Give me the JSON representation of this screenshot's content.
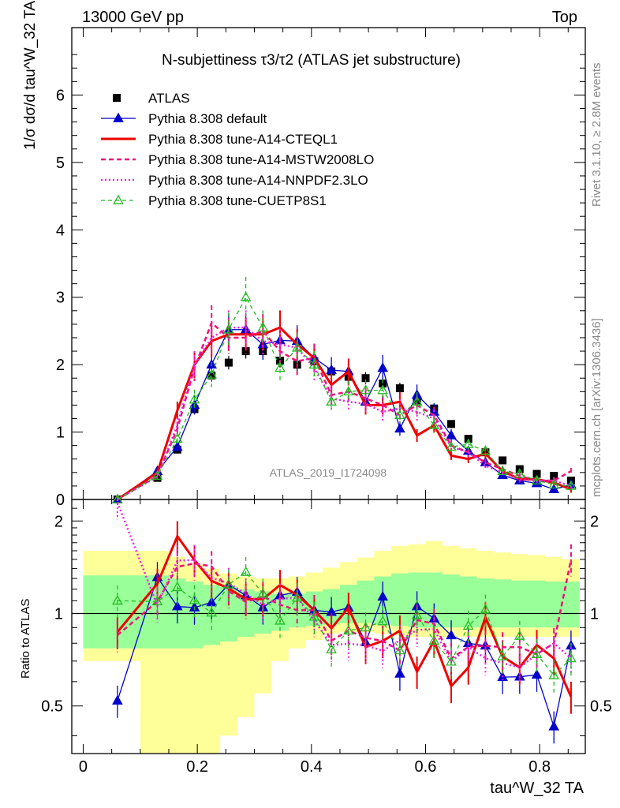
{
  "header": {
    "left": "13000 GeV pp",
    "right": "Top"
  },
  "side_labels": {
    "rivet": "Rivet 3.1.10, ≥ 2.8M events",
    "mcplots": "mcplots.cern.ch [arXiv:1306.3436]"
  },
  "chart_data": {
    "type": "scatter",
    "title": "N-subjettiness τ3/τ2 (ATLAS jet substructure)",
    "watermark": "ATLAS_2019_I1724098",
    "xlabel": "tau^W_32 TA",
    "ylabel_main": "1/σ dσ/d tau^W_32 TA",
    "ylabel_ratio": "Ratio to ATLAS",
    "xlim": [
      -0.02,
      0.88
    ],
    "ylim_main": [
      0,
      7
    ],
    "ylim_ratio": [
      0.35,
      2.35
    ],
    "main_yticks": [
      "0",
      "1",
      "2",
      "3",
      "4",
      "5",
      "6"
    ],
    "ratio_yticks": [
      "0.5",
      "1",
      "2"
    ],
    "xticks": [
      "0",
      "0.2",
      "0.4",
      "0.6",
      "0.8"
    ],
    "x": [
      0.06,
      0.13,
      0.165,
      0.195,
      0.225,
      0.255,
      0.285,
      0.315,
      0.345,
      0.375,
      0.405,
      0.435,
      0.465,
      0.495,
      0.525,
      0.555,
      0.585,
      0.615,
      0.645,
      0.675,
      0.705,
      0.735,
      0.765,
      0.795,
      0.825,
      0.855
    ],
    "series": [
      {
        "name": "ATLAS",
        "color": "#000000",
        "style": "data",
        "values": [
          0.0,
          0.32,
          0.74,
          1.34,
          1.84,
          2.03,
          2.2,
          2.2,
          2.06,
          2.0,
          2.05,
          1.9,
          1.82,
          1.8,
          1.72,
          1.65,
          1.47,
          1.35,
          1.12,
          0.9,
          0.7,
          0.58,
          0.45,
          0.38,
          0.35,
          0.28
        ]
      },
      {
        "name": "Pythia 8.308 default",
        "color": "#0000cc",
        "style": "solid-triangle",
        "values": [
          0.0,
          0.42,
          0.78,
          1.4,
          2.0,
          2.52,
          2.52,
          2.3,
          2.36,
          2.35,
          2.1,
          1.92,
          1.9,
          1.45,
          1.95,
          1.05,
          1.55,
          1.3,
          0.95,
          0.72,
          0.55,
          0.36,
          0.28,
          0.24,
          0.15,
          0.22
        ]
      },
      {
        "name": "Pythia 8.308 tune-A14-CTEQL1",
        "color": "#ee0000",
        "style": "thick-solid",
        "values": [
          0.0,
          0.4,
          1.32,
          2.0,
          2.35,
          2.45,
          2.45,
          2.45,
          2.55,
          2.3,
          2.1,
          1.7,
          1.9,
          1.4,
          1.4,
          1.45,
          0.95,
          1.1,
          0.65,
          0.6,
          0.68,
          0.42,
          0.3,
          0.3,
          0.25,
          0.15
        ]
      },
      {
        "name": "Pythia 8.308 tune-A14-MSTW2008LO",
        "color": "#ee1177",
        "style": "dashed",
        "values": [
          0.0,
          0.35,
          1.05,
          1.95,
          2.62,
          2.4,
          2.4,
          2.5,
          2.2,
          2.05,
          2.1,
          1.55,
          1.6,
          1.5,
          1.4,
          1.25,
          1.4,
          1.25,
          0.8,
          0.7,
          0.55,
          0.45,
          0.35,
          0.28,
          0.28,
          0.42
        ]
      },
      {
        "name": "Pythia 8.308 tune-A14-NNPDF2.3LO",
        "color": "#ee22dd",
        "style": "dotted",
        "values": [
          0.0,
          0.34,
          1.1,
          2.0,
          2.4,
          2.55,
          2.55,
          2.35,
          2.3,
          2.25,
          1.95,
          1.5,
          1.45,
          1.42,
          1.3,
          1.35,
          1.3,
          1.2,
          0.78,
          0.7,
          0.5,
          0.4,
          0.3,
          0.28,
          0.28,
          0.2
        ]
      },
      {
        "name": "Pythia 8.308 tune-CUETP8S1",
        "color": "#22bb22",
        "style": "dashed-open-triangle",
        "values": [
          0.0,
          0.35,
          0.9,
          1.48,
          1.85,
          2.52,
          3.0,
          2.55,
          1.95,
          2.25,
          2.0,
          1.45,
          1.6,
          1.62,
          1.62,
          1.25,
          1.45,
          1.1,
          0.78,
          0.82,
          0.72,
          0.42,
          0.38,
          0.28,
          0.22,
          0.2
        ]
      }
    ],
    "ratio_bands": {
      "x_edges": [
        0.0,
        0.1,
        0.15,
        0.18,
        0.21,
        0.24,
        0.27,
        0.3,
        0.33,
        0.36,
        0.39,
        0.42,
        0.45,
        0.48,
        0.51,
        0.54,
        0.57,
        0.6,
        0.63,
        0.66,
        0.69,
        0.72,
        0.75,
        0.78,
        0.81,
        0.84,
        0.87
      ],
      "yellow_lo": [
        0.7,
        0.35,
        0.35,
        0.35,
        0.35,
        0.4,
        0.46,
        0.55,
        0.7,
        0.77,
        0.82,
        0.86,
        0.87,
        0.87,
        0.86,
        0.85,
        0.84,
        0.84,
        0.84,
        0.84,
        0.84,
        0.84,
        0.84,
        0.84,
        0.84,
        0.84
      ],
      "yellow_hi": [
        1.6,
        1.6,
        1.53,
        1.45,
        1.4,
        1.35,
        1.32,
        1.3,
        1.3,
        1.32,
        1.36,
        1.41,
        1.47,
        1.52,
        1.6,
        1.66,
        1.68,
        1.72,
        1.66,
        1.63,
        1.6,
        1.58,
        1.56,
        1.55,
        1.53,
        1.5
      ],
      "green_lo": [
        0.77,
        0.77,
        0.77,
        0.77,
        0.79,
        0.81,
        0.84,
        0.86,
        0.88,
        0.9,
        0.91,
        0.92,
        0.93,
        0.93,
        0.92,
        0.91,
        0.9,
        0.9,
        0.9,
        0.9,
        0.9,
        0.9,
        0.9,
        0.9,
        0.9,
        0.9
      ],
      "green_hi": [
        1.33,
        1.33,
        1.3,
        1.27,
        1.24,
        1.22,
        1.2,
        1.18,
        1.16,
        1.16,
        1.18,
        1.2,
        1.24,
        1.28,
        1.32,
        1.35,
        1.36,
        1.36,
        1.34,
        1.32,
        1.3,
        1.29,
        1.28,
        1.28,
        1.27,
        1.27
      ]
    },
    "legend_position": "top-left",
    "grid": false
  }
}
